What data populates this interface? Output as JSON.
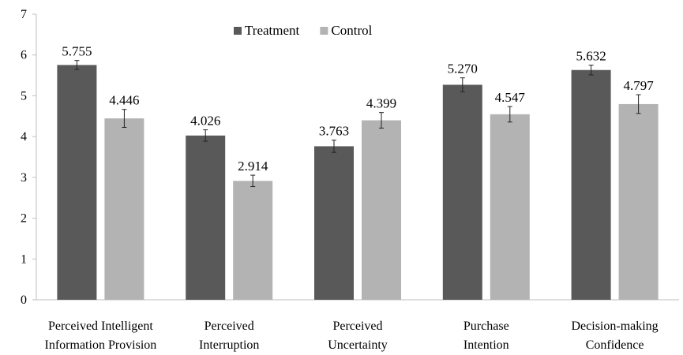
{
  "chart_data": {
    "type": "bar",
    "categories": [
      [
        "Perceived Intelligent",
        "Information Provision"
      ],
      [
        "Perceived",
        "Interruption"
      ],
      [
        "Perceived",
        "Uncertainty"
      ],
      [
        "Purchase",
        "Intention"
      ],
      [
        "Decision-making",
        "Confidence"
      ]
    ],
    "series": [
      {
        "name": "Treatment",
        "color": "#595959",
        "values": [
          5.755,
          4.026,
          3.763,
          5.27,
          5.632
        ],
        "labels": [
          "5.755",
          "4.026",
          "3.763",
          "5.270",
          "5.632"
        ],
        "error": [
          0.11,
          0.14,
          0.15,
          0.17,
          0.12
        ]
      },
      {
        "name": "Control",
        "color": "#b3b3b3",
        "values": [
          4.446,
          2.914,
          4.399,
          4.547,
          4.797
        ],
        "labels": [
          "4.446",
          "2.914",
          "4.399",
          "4.547",
          "4.797"
        ],
        "error": [
          0.22,
          0.14,
          0.19,
          0.19,
          0.23
        ]
      }
    ],
    "title": "",
    "xlabel": "",
    "ylabel": "",
    "ylim": [
      0,
      7
    ],
    "yticks": [
      "0",
      "1",
      "2",
      "3",
      "4",
      "5",
      "6",
      "7"
    ],
    "grid": false,
    "legend_position": "top-center"
  }
}
